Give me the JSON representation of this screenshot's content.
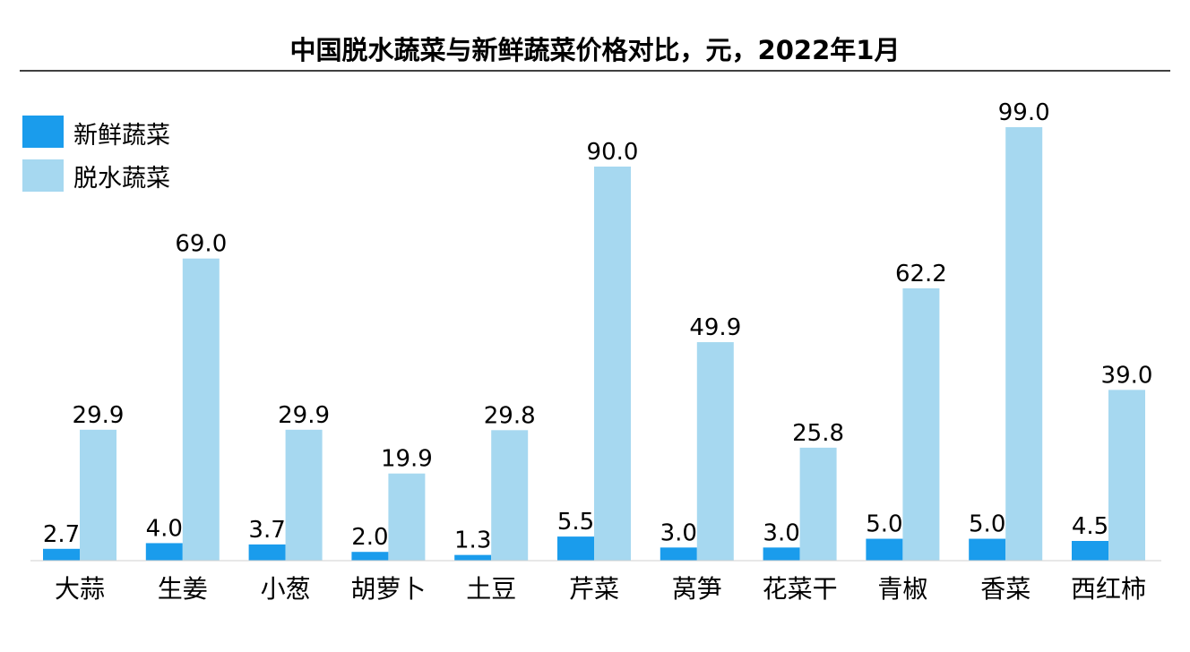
{
  "chart_data": {
    "type": "bar",
    "title": "中国脱水蔬菜与新鲜蔬菜价格对比，元，2022年1月",
    "xlabel": "",
    "ylabel": "",
    "categories": [
      "大蒜",
      "生姜",
      "小葱",
      "胡萝卜",
      "土豆",
      "芹菜",
      "莴笋",
      "花菜干",
      "青椒",
      "香菜",
      "西红柿"
    ],
    "series": [
      {
        "name": "新鲜蔬菜",
        "color": "#1a9cec",
        "values": [
          2.7,
          4.0,
          3.7,
          2.0,
          1.3,
          5.5,
          3.0,
          3.0,
          5.0,
          5.0,
          4.5
        ]
      },
      {
        "name": "脱水蔬菜",
        "color": "#a6d8f0",
        "values": [
          29.9,
          69.0,
          29.9,
          19.9,
          29.8,
          90.0,
          49.9,
          25.8,
          62.2,
          99.0,
          39.0
        ]
      }
    ],
    "ylim": [
      0,
      99
    ],
    "legend_position": "top-left",
    "grid": false
  }
}
